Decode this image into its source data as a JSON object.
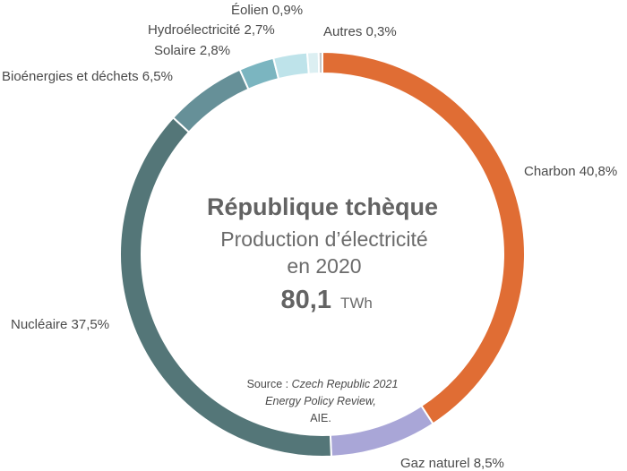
{
  "chart_data": {
    "type": "pie",
    "title": "République tchèque",
    "subtitle_line1": "Production d’électricité",
    "subtitle_line2": "en 2020",
    "total_value": "80,1",
    "total_unit": "TWh",
    "source_prefix": "Source : ",
    "source_italic_1": "Czech Republic 2021",
    "source_italic_2": "Energy Policy Review,",
    "source_line3": "AIE.",
    "slices": [
      {
        "label": "Charbon 40,8%",
        "value": 40.8,
        "color": "#e06d34"
      },
      {
        "label": "Gaz naturel 8,5%",
        "value": 8.5,
        "color": "#a9a6d7"
      },
      {
        "label": "Nucléaire 37,5%",
        "value": 37.5,
        "color": "#547678"
      },
      {
        "label": "Bioénergies et déchets 6,5%",
        "value": 6.5,
        "color": "#669098"
      },
      {
        "label": "Solaire 2,8%",
        "value": 2.8,
        "color": "#7bb5c0"
      },
      {
        "label": "Hydroélectricité 2,7%",
        "value": 2.7,
        "color": "#bee3ea"
      },
      {
        "label": "Éolien 0,9%",
        "value": 0.9,
        "color": "#dceff2"
      },
      {
        "label": "Autres 0,3%",
        "value": 0.3,
        "color": "#c8c8c8"
      }
    ]
  }
}
